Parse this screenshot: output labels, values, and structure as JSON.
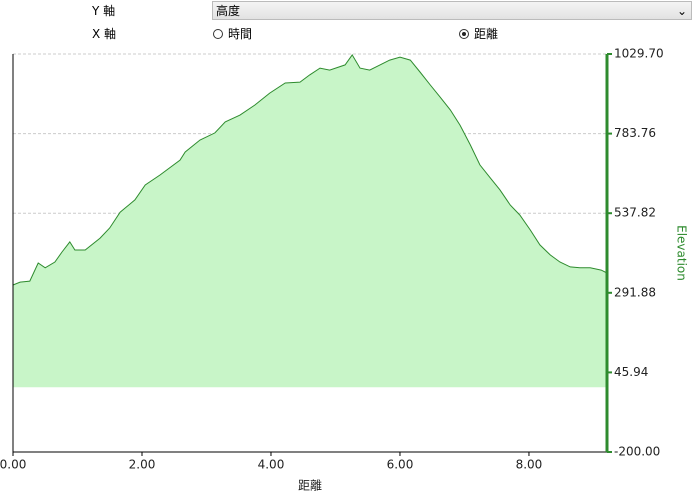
{
  "controls": {
    "y_axis_label": "Y 軸",
    "y_axis_value": "高度",
    "x_axis_label": "X 軸",
    "x_options": [
      "時間",
      "距離"
    ],
    "x_selected": 1
  },
  "chart_data": {
    "type": "area",
    "x_label": "距離",
    "y_label": "Elevation",
    "x": [
      0,
      0.11,
      0.26,
      0.39,
      0.5,
      0.65,
      0.76,
      0.88,
      0.96,
      1.12,
      1.35,
      1.5,
      1.66,
      1.89,
      2.05,
      2.28,
      2.59,
      2.67,
      2.9,
      3.13,
      3.29,
      3.52,
      3.75,
      3.98,
      4.22,
      4.45,
      4.6,
      4.76,
      4.91,
      5.15,
      5.26,
      5.38,
      5.53,
      5.69,
      5.84,
      6.0,
      6.16,
      6.31,
      6.47,
      6.62,
      6.78,
      6.93,
      7.09,
      7.24,
      7.4,
      7.55,
      7.71,
      7.86,
      8.02,
      8.17,
      8.33,
      8.48,
      8.64,
      8.79,
      8.95,
      9.12,
      9.21
    ],
    "series": [
      {
        "name": "Elevation",
        "color": "#2e8b2e",
        "fill": "#c8f5c8",
        "axis": "y2",
        "values": [
          316,
          325,
          328,
          384,
          369,
          387,
          418,
          449,
          424,
          424,
          461,
          492,
          541,
          579,
          625,
          656,
          702,
          727,
          764,
          786,
          820,
          841,
          872,
          909,
          940,
          943,
          965,
          986,
          980,
          996,
          1027,
          986,
          980,
          996,
          1011,
          1020,
          1011,
          974,
          934,
          897,
          857,
          810,
          749,
          687,
          647,
          610,
          563,
          532,
          486,
          440,
          409,
          387,
          372,
          369,
          369,
          362,
          353
        ]
      }
    ],
    "xlim": [
      0,
      9.21
    ],
    "xticks": [
      {
        "value": 0,
        "label": "0.00"
      },
      {
        "value": 2,
        "label": "2.00"
      },
      {
        "value": 4,
        "label": "4.00"
      },
      {
        "value": 6,
        "label": "6.00"
      },
      {
        "value": 8,
        "label": "8.00"
      }
    ],
    "y2lim": [
      -200,
      1029.7
    ],
    "y2ticks": [
      {
        "value": -200,
        "label": "-200.00"
      },
      45.94,
      291.88,
      537.82,
      783.76,
      {
        "value": 1029.7,
        "label": "1029.70"
      }
    ],
    "grid": true
  }
}
